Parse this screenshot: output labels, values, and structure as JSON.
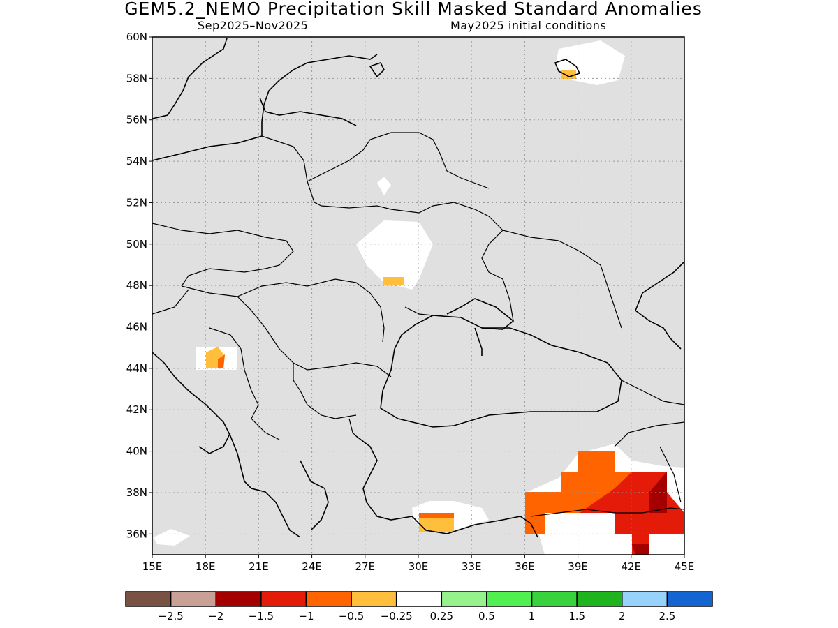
{
  "title": "GEM5.2_NEMO Precipitation Skill Masked Standard Anomalies",
  "subtitle_left": "Sep2025–Nov2025",
  "subtitle_right": "May2025 initial conditions",
  "colors": {
    "land_masked": "#e0e0e0",
    "neutral": "#ffffff",
    "lt_m0_25": "#ffbf3d",
    "lt_m0_5": "#ff6400",
    "lt_m1": "#e31b08",
    "lt_m1_5": "#a50000"
  },
  "map": {
    "lon_range": [
      15,
      45
    ],
    "lat_range": [
      35,
      60
    ],
    "lon_labels": [
      "15E",
      "18E",
      "21E",
      "24E",
      "27E",
      "30E",
      "33E",
      "36E",
      "39E",
      "42E",
      "45E"
    ],
    "lat_labels": [
      "36N",
      "38N",
      "40N",
      "42N",
      "44N",
      "46N",
      "48N",
      "50N",
      "52N",
      "54N",
      "56N",
      "58N",
      "60N"
    ]
  },
  "colorbar": {
    "colors": [
      "#7a5244",
      "#c8a096",
      "#a50000",
      "#e31b08",
      "#ff6400",
      "#ffbf3d",
      "#ffffff",
      "#96f28a",
      "#50f050",
      "#37d23c",
      "#1eb41e",
      "#96d2fa",
      "#1464d2"
    ],
    "labels": [
      "−2.5",
      "−2",
      "−1.5",
      "−1",
      "−0.5",
      "−0.25",
      "0.25",
      "0.5",
      "1",
      "1.5",
      "2",
      "2.5"
    ]
  }
}
